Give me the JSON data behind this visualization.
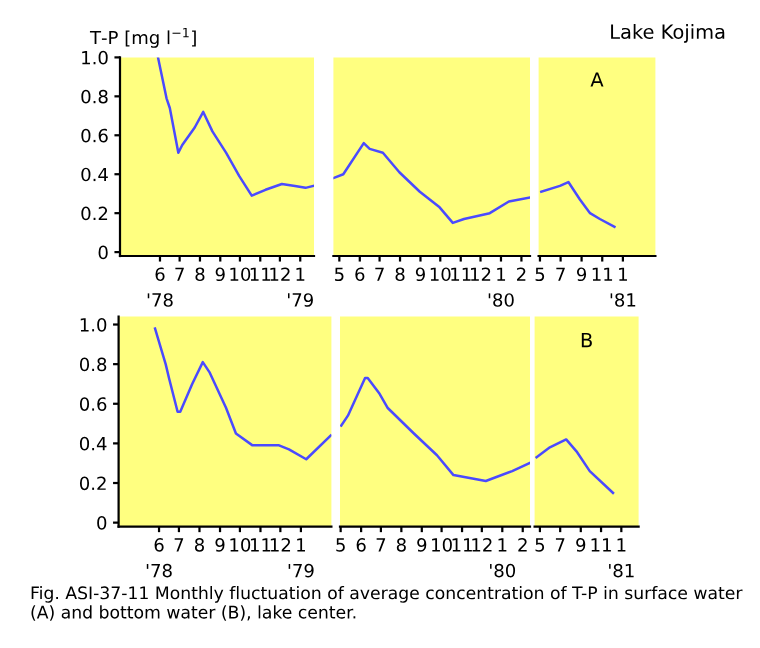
{
  "chart_data": [
    {
      "type": "line",
      "ylabel": "T-P [mg l$^{−1}$]",
      "annotations": [
        "Fig. ASI-37-11 Monthly fluctuation of average concentration of T-P in surface water (A) and bottom water (B), lake center."
      ],
      "x": [
        "1978-05-29",
        "1978-06-11",
        "1978-06-16",
        "1978-06-29",
        "1978-07-05",
        "1978-07-24",
        "1978-08-06",
        "1978-08-20",
        "1978-09-10",
        "1978-09-30",
        "1978-10-19",
        "1978-11-09",
        "1978-12-04",
        "1978-12-24",
        "1979-01-09",
        "1979-01-21"
      ],
      "values": [
        1.0,
        0.79,
        0.74,
        0.51,
        0.55,
        0.64,
        0.72,
        0.62,
        0.51,
        0.39,
        0.29,
        0.32,
        0.35,
        0.34,
        0.33,
        0.34
      ],
      "color": "#4a4aff",
      "xlim": [
        "1978-04-01",
        "1979-01-22"
      ],
      "ylim": [
        -0.02,
        1.0
      ],
      "xticks": [
        {
          "value": "1978-06-01",
          "label": "6\n'78"
        },
        {
          "value": "1978-07-01",
          "label": "7"
        },
        {
          "value": "1978-08-01",
          "label": "8"
        },
        {
          "value": "1978-09-01",
          "label": "9"
        },
        {
          "value": "1978-10-01",
          "label": "10"
        },
        {
          "value": "1978-11-01",
          "label": "11"
        },
        {
          "value": "1978-12-01",
          "label": "12"
        },
        {
          "value": "1979-01-01",
          "label": "1\n'79"
        }
      ],
      "yticks": [
        0,
        0.2,
        0.4,
        0.6,
        0.8,
        {
          "value": 1.0,
          "label": "1.0"
        }
      ],
      "grid": false
    },
    {
      "type": "line",
      "x": [
        "1979-04-22",
        "1979-05-07",
        "1979-06-07",
        "1979-06-16",
        "1979-07-06",
        "1979-07-31",
        "1979-08-31",
        "1979-09-30",
        "1979-10-20",
        "1979-11-06",
        "1979-12-15",
        "1980-01-13",
        "1980-02-13"
      ],
      "values": [
        0.38,
        0.4,
        0.56,
        0.53,
        0.51,
        0.41,
        0.31,
        0.23,
        0.15,
        0.17,
        0.2,
        0.26,
        0.28
      ],
      "color": "#4a4aff",
      "xlim": [
        "1979-04-22",
        "1980-02-14"
      ],
      "ylim": [
        -0.02,
        1.0
      ],
      "xticks": [
        {
          "value": "1979-05-01",
          "label": "5"
        },
        {
          "value": "1979-06-01",
          "label": "6"
        },
        {
          "value": "1979-07-01",
          "label": "7"
        },
        {
          "value": "1979-08-01",
          "label": "8"
        },
        {
          "value": "1979-09-01",
          "label": "9"
        },
        {
          "value": "1979-10-01",
          "label": "10"
        },
        {
          "value": "1979-11-01",
          "label": "11"
        },
        {
          "value": "1979-12-01",
          "label": "12"
        },
        {
          "value": "1980-01-01",
          "label": "1\n'80"
        },
        {
          "value": "1980-02-01",
          "label": "2"
        }
      ],
      "tick_labels": "x",
      "grid": false
    },
    {
      "type": "line",
      "title": "Lake Kojima",
      "annotations": [
        "A"
      ],
      "x": [
        "1980-05-05",
        "1980-06-29",
        "1980-07-24",
        "1980-08-27",
        "1980-09-26",
        "1980-10-25",
        "1980-12-07"
      ],
      "values": [
        0.31,
        0.34,
        0.36,
        0.27,
        0.2,
        0.17,
        0.13
      ],
      "color": "#4a4aff",
      "xlim": [
        "1980-04-27",
        "1981-04-07"
      ],
      "ylim": [
        -0.02,
        1.0
      ],
      "xticks": [
        {
          "value": "1980-05-01",
          "label": "5"
        },
        {
          "value": "1980-07-01",
          "label": "7"
        },
        {
          "value": "1980-09-01",
          "label": "9"
        },
        {
          "value": "1980-11-01",
          "label": "11"
        },
        {
          "value": "1981-01-01",
          "label": "1\n'81"
        }
      ],
      "tick_labels": "x",
      "grid": false
    },
    {
      "type": "line",
      "x": [
        "1978-05-26",
        "1978-06-11",
        "1978-06-16",
        "1978-06-29",
        "1978-07-03",
        "1978-07-21",
        "1978-08-06",
        "1978-08-16",
        "1978-09-10",
        "1978-09-25",
        "1978-10-20",
        "1978-11-29",
        "1978-12-14",
        "1979-01-09",
        "1979-02-15"
      ],
      "values": [
        0.98,
        0.8,
        0.73,
        0.56,
        0.56,
        0.7,
        0.81,
        0.76,
        0.58,
        0.45,
        0.39,
        0.39,
        0.37,
        0.32,
        0.44
      ],
      "color": "#4a4aff",
      "xlim": [
        "1978-04-01",
        "1979-02-16"
      ],
      "ylim": [
        -0.02,
        1.04
      ],
      "xticks": [
        {
          "value": "1978-06-01",
          "label": "6\n'78"
        },
        {
          "value": "1978-07-01",
          "label": "7"
        },
        {
          "value": "1978-08-01",
          "label": "8"
        },
        {
          "value": "1978-09-01",
          "label": "9"
        },
        {
          "value": "1978-10-01",
          "label": "10"
        },
        {
          "value": "1978-11-01",
          "label": "11"
        },
        {
          "value": "1978-12-01",
          "label": "12"
        },
        {
          "value": "1979-01-01",
          "label": "1\n'79"
        }
      ],
      "yticks": [
        0,
        0.2,
        0.4,
        0.6,
        0.8,
        {
          "value": 1.0,
          "label": "1.0"
        }
      ],
      "grid": false
    },
    {
      "type": "line",
      "x": [
        "1979-05-02",
        "1979-05-12",
        "1979-06-07",
        "1979-06-11",
        "1979-06-29",
        "1979-07-11",
        "1979-08-20",
        "1979-09-24",
        "1979-10-19",
        "1979-12-07",
        "1980-01-16",
        "1980-02-11"
      ],
      "values": [
        0.49,
        0.54,
        0.73,
        0.73,
        0.65,
        0.58,
        0.45,
        0.34,
        0.24,
        0.21,
        0.26,
        0.3
      ],
      "color": "#4a4aff",
      "xlim": [
        "1979-04-30",
        "1980-02-12"
      ],
      "ylim": [
        -0.02,
        1.04
      ],
      "xticks": [
        {
          "value": "1979-05-01",
          "label": "5"
        },
        {
          "value": "1979-06-01",
          "label": "6"
        },
        {
          "value": "1979-07-01",
          "label": "7"
        },
        {
          "value": "1979-08-01",
          "label": "8"
        },
        {
          "value": "1979-09-01",
          "label": "9"
        },
        {
          "value": "1979-10-01",
          "label": "10"
        },
        {
          "value": "1979-11-01",
          "label": "11"
        },
        {
          "value": "1979-12-01",
          "label": "12"
        },
        {
          "value": "1980-01-01",
          "label": "1\n'80"
        },
        {
          "value": "1980-02-01",
          "label": "2"
        }
      ],
      "tick_labels": "x",
      "grid": false
    },
    {
      "type": "line",
      "annotations": [
        "B"
      ],
      "x": [
        "1980-04-21",
        "1980-05-31",
        "1980-07-19",
        "1980-08-19",
        "1980-09-28",
        "1980-12-07"
      ],
      "values": [
        0.33,
        0.38,
        0.42,
        0.36,
        0.26,
        0.15
      ],
      "color": "#4a4aff",
      "xlim": [
        "1980-04-15",
        "1981-02-22"
      ],
      "ylim": [
        -0.02,
        1.04
      ],
      "xticks": [
        {
          "value": "1980-05-01",
          "label": "5"
        },
        {
          "value": "1980-07-01",
          "label": "7"
        },
        {
          "value": "1980-09-01",
          "label": "9"
        },
        {
          "value": "1980-11-01",
          "label": "11"
        },
        {
          "value": "1981-01-01",
          "label": "1\n'81"
        }
      ],
      "tick_labels": "x",
      "grid": false
    }
  ]
}
